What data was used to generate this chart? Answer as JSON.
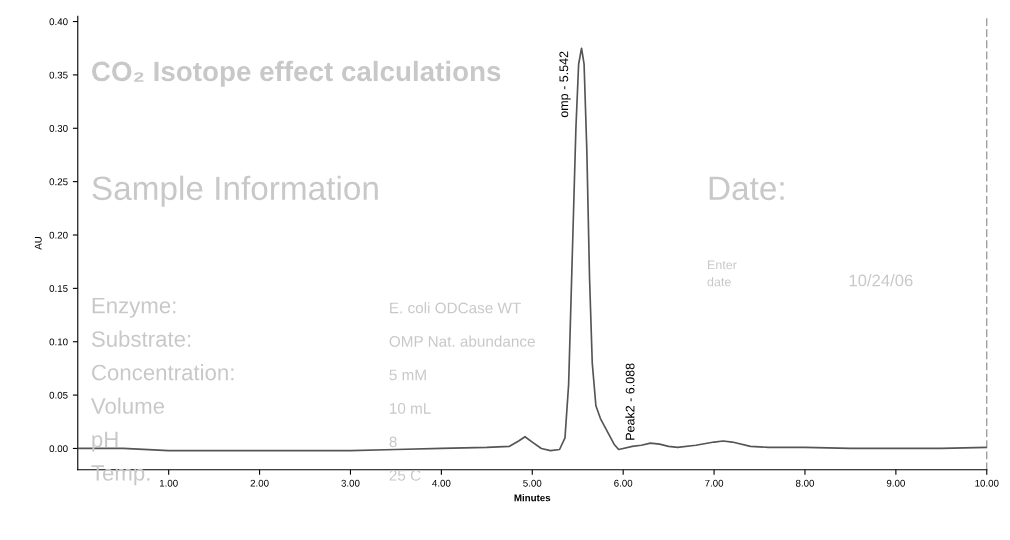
{
  "chart_data": {
    "type": "line",
    "xlabel": "Minutes",
    "ylabel": "AU",
    "x": [
      0.0,
      0.5,
      1.0,
      1.5,
      2.0,
      2.5,
      3.0,
      3.5,
      4.0,
      4.5,
      4.75,
      4.85,
      4.92,
      5.0,
      5.1,
      5.2,
      5.3,
      5.36,
      5.4,
      5.44,
      5.48,
      5.51,
      5.542,
      5.57,
      5.6,
      5.63,
      5.66,
      5.7,
      5.75,
      5.8,
      5.85,
      5.9,
      5.95,
      6.0,
      6.1,
      6.2,
      6.3,
      6.4,
      6.5,
      6.6,
      6.8,
      7.0,
      7.1,
      7.2,
      7.4,
      7.6,
      8.0,
      8.5,
      9.0,
      9.5,
      10.0
    ],
    "values": [
      0.0,
      0.0,
      -0.002,
      -0.002,
      -0.002,
      -0.002,
      -0.002,
      -0.001,
      0.0,
      0.001,
      0.002,
      0.007,
      0.011,
      0.006,
      0.0,
      -0.002,
      -0.001,
      0.01,
      0.06,
      0.18,
      0.3,
      0.36,
      0.375,
      0.36,
      0.28,
      0.16,
      0.08,
      0.04,
      0.028,
      0.02,
      0.012,
      0.004,
      -0.001,
      0.0,
      0.002,
      0.003,
      0.005,
      0.004,
      0.002,
      0.001,
      0.003,
      0.006,
      0.007,
      0.006,
      0.002,
      0.001,
      0.001,
      0.0,
      0.0,
      0.0,
      0.001
    ],
    "color": "#555555",
    "xlim": [
      0,
      10
    ],
    "ylim": [
      -0.02,
      0.405
    ],
    "xticks": [
      {
        "value": 1,
        "label": "1.00"
      },
      {
        "value": 2,
        "label": "2.00"
      },
      {
        "value": 3,
        "label": "3.00"
      },
      {
        "value": 4,
        "label": "4.00"
      },
      {
        "value": 5,
        "label": "5.00"
      },
      {
        "value": 6,
        "label": "6.00"
      },
      {
        "value": 7,
        "label": "7.00"
      },
      {
        "value": 8,
        "label": "8.00"
      },
      {
        "value": 9,
        "label": "9.00"
      },
      {
        "value": 10,
        "label": "10.00"
      }
    ],
    "yticks": [
      {
        "value": 0,
        "label": "0.00"
      },
      {
        "value": 0.05,
        "label": "0.05"
      },
      {
        "value": 0.1,
        "label": "0.10"
      },
      {
        "value": 0.15,
        "label": "0.15"
      },
      {
        "value": 0.2,
        "label": "0.20"
      },
      {
        "value": 0.25,
        "label": "0.25"
      },
      {
        "value": 0.3,
        "label": "0.30"
      },
      {
        "value": 0.35,
        "label": "0.35"
      },
      {
        "value": 0.4,
        "label": "0.40"
      }
    ],
    "grid": false,
    "legend": false,
    "marker": "none",
    "line_style": "solid",
    "annotations": [
      {
        "text": "omp - 5.542",
        "x": 5.542,
        "y": 0.375
      },
      {
        "text": "Peak2 - 6.088",
        "x": 6.088,
        "y": 0.002
      },
      "CO₂ Isotope effect calculations",
      "Sample Information",
      "Date:",
      "Enter\ndate",
      "10/24/06",
      "Enzyme:",
      "E. coli ODCase WT",
      "Substrate:",
      "OMP Nat. abundance",
      "Concentration:",
      "5 mM",
      "Volume",
      "10 mL",
      "pH",
      "8",
      "Temp.",
      "25 C"
    ]
  }
}
